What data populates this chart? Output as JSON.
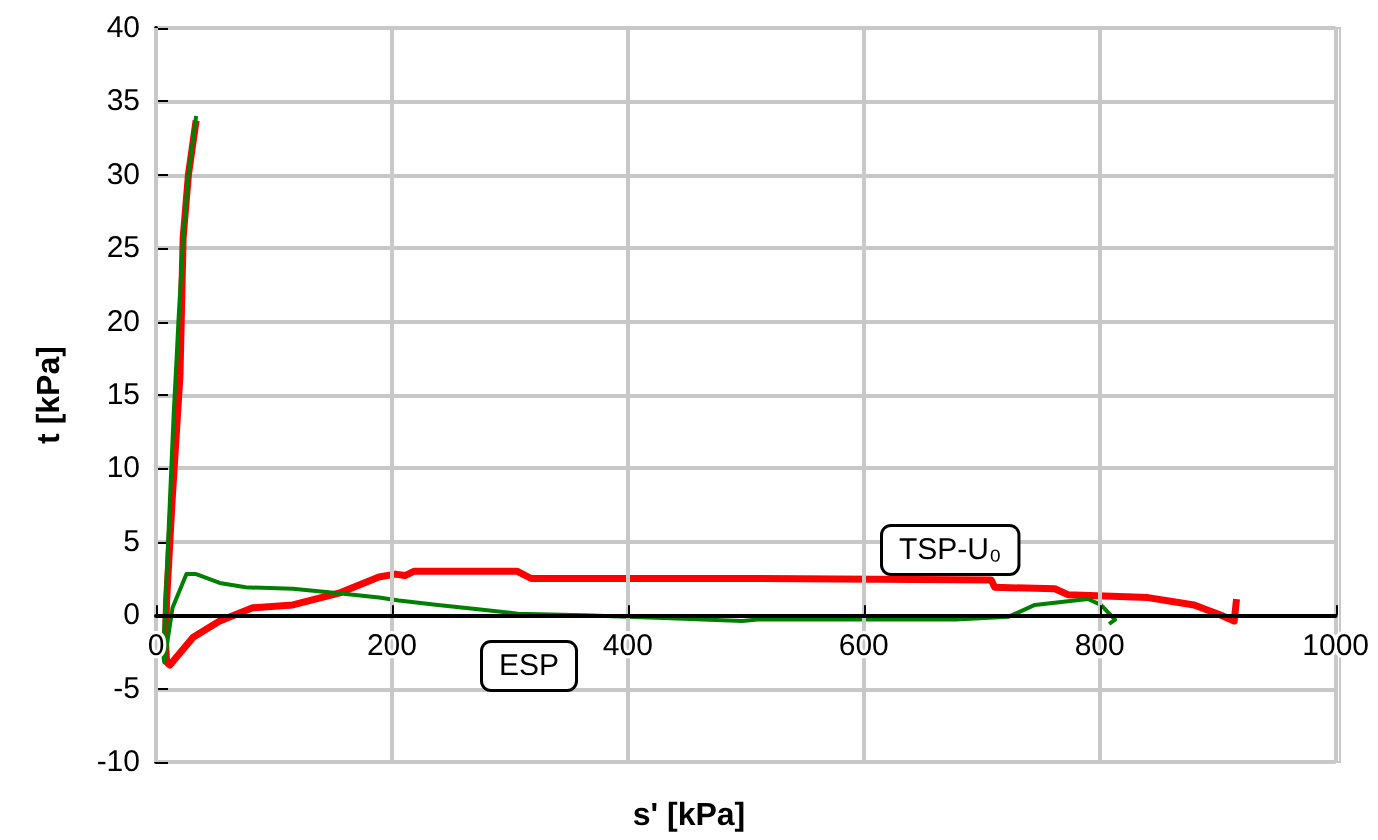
{
  "chart_data": {
    "type": "line",
    "xlabel": "s' [kPa]",
    "ylabel": "t [kPa]",
    "xlim": [
      0,
      1000
    ],
    "xticks": [
      0,
      200,
      400,
      600,
      800,
      1000
    ],
    "ylim": [
      -10,
      40
    ],
    "yticks": [
      -10,
      -5,
      0,
      5,
      10,
      15,
      20,
      25,
      30,
      35,
      40
    ],
    "grid": true,
    "legend": false,
    "marker": "none",
    "line_style": "solid",
    "series": [
      {
        "name": "TSP-U₀",
        "color": "#ff0000",
        "x": [
          916,
          914,
          903,
          880,
          841,
          773,
          762,
          711,
          708,
          509,
          318,
          306,
          219,
          211,
          203,
          189,
          155,
          116,
          82,
          54,
          31.5,
          11.8,
          9,
          8,
          9,
          13.5,
          20.3,
          23,
          27.5,
          34
        ],
        "values": [
          1.1,
          -0.4,
          0,
          0.7,
          1.2,
          1.4,
          1.8,
          1.9,
          2.4,
          2.5,
          2.5,
          3,
          3,
          2.7,
          2.8,
          2.6,
          1.5,
          0.7,
          0.5,
          -0.4,
          -1.5,
          -3.4,
          -3.2,
          -1.7,
          1,
          7.6,
          16.3,
          25.7,
          30,
          33.7
        ]
      },
      {
        "name": "ESP",
        "color": "#008000",
        "x": [
          808,
          813,
          801,
          790,
          745,
          723,
          678,
          510,
          497,
          436,
          363,
          307,
          273,
          239,
          206,
          189,
          155,
          116,
          76,
          54,
          34,
          25.8,
          14,
          7,
          6,
          7.6,
          9.6,
          12,
          15,
          17.6,
          19,
          23,
          27.5,
          34
        ],
        "values": [
          -0.6,
          -0.3,
          0.7,
          1.1,
          0.7,
          -0.1,
          -0.3,
          -0.3,
          -0.4,
          -0.2,
          0,
          0.1,
          0.4,
          0.7,
          1,
          1.2,
          1.5,
          1.8,
          1.9,
          2.2,
          2.8,
          2.8,
          0.5,
          -3.2,
          -2.5,
          0,
          3.7,
          8.2,
          13.7,
          17.7,
          20,
          25.7,
          30,
          34
        ]
      }
    ]
  }
}
